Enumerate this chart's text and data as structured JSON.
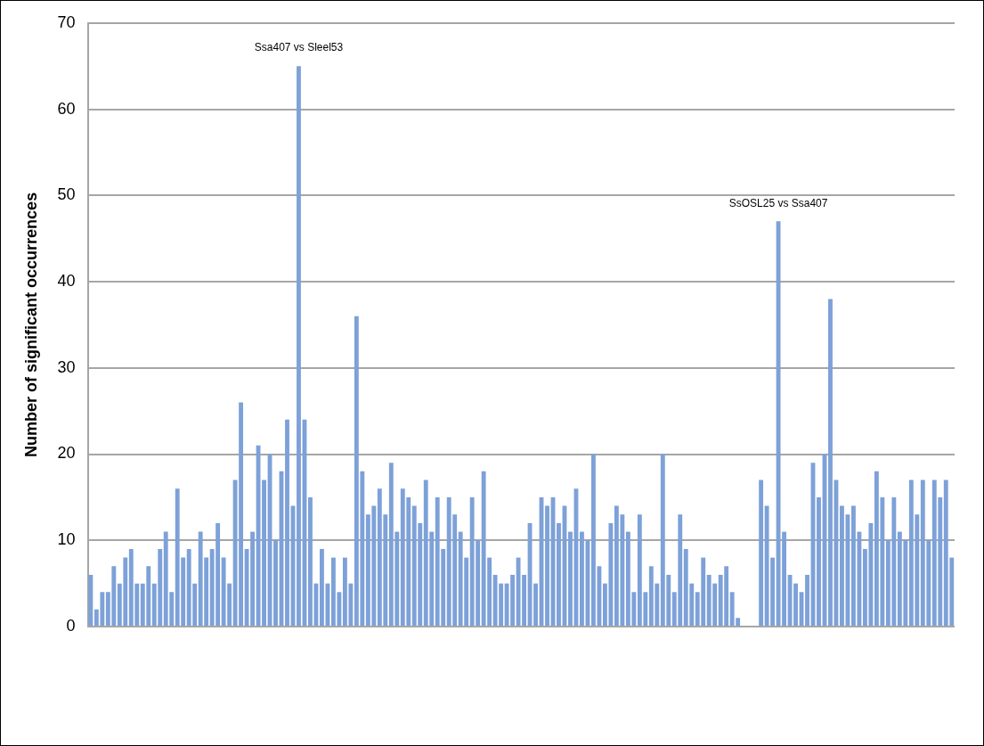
{
  "chart_data": {
    "type": "bar",
    "ylabel": "Number of significant occurrences",
    "annotations": [
      "Ssa407 vs Sleel53",
      "SsOSL25 vs Ssa407"
    ],
    "categories": [
      null,
      null,
      null,
      null,
      null,
      null,
      null,
      null,
      null,
      null,
      null,
      null,
      null,
      null,
      null,
      null,
      null,
      null,
      null,
      null,
      null,
      null,
      null,
      null,
      null,
      null,
      null,
      null,
      null,
      null,
      null,
      null,
      null,
      null,
      null,
      null,
      null,
      null,
      null,
      null,
      null,
      null,
      null,
      null,
      null,
      null,
      null,
      null,
      null,
      null,
      null,
      null,
      null,
      null,
      null,
      null,
      null,
      null,
      null,
      null,
      null,
      null,
      null,
      null,
      null,
      null,
      null,
      null,
      null,
      null,
      null,
      null,
      null,
      null,
      null,
      null,
      null,
      null,
      null,
      null,
      null,
      null,
      null,
      null,
      null,
      null,
      null,
      null,
      null,
      null,
      null,
      null,
      null,
      null,
      null,
      null,
      null,
      null,
      null,
      null,
      null,
      null,
      null,
      null,
      null,
      null,
      null,
      null,
      null,
      null,
      null,
      null,
      null,
      null,
      null,
      null,
      null,
      null,
      null,
      null,
      null,
      null,
      null,
      null,
      null,
      null,
      null,
      null,
      null,
      null,
      null,
      null,
      null,
      null,
      null,
      null,
      null,
      null,
      null,
      null,
      null,
      null,
      null,
      null,
      null,
      null,
      null,
      null,
      null,
      null
    ],
    "values": [
      6,
      2,
      4,
      4,
      7,
      5,
      8,
      9,
      5,
      5,
      7,
      5,
      9,
      11,
      4,
      16,
      8,
      9,
      5,
      11,
      8,
      9,
      12,
      8,
      5,
      17,
      26,
      9,
      11,
      21,
      17,
      20,
      10,
      18,
      24,
      14,
      65,
      24,
      15,
      5,
      9,
      5,
      8,
      4,
      8,
      5,
      36,
      18,
      13,
      14,
      16,
      13,
      19,
      11,
      16,
      15,
      14,
      12,
      17,
      11,
      15,
      9,
      15,
      13,
      11,
      8,
      15,
      10,
      18,
      8,
      6,
      5,
      5,
      6,
      8,
      6,
      12,
      5,
      15,
      14,
      15,
      12,
      14,
      11,
      16,
      11,
      10,
      20,
      7,
      5,
      12,
      14,
      13,
      11,
      4,
      13,
      4,
      7,
      5,
      20,
      6,
      4,
      13,
      9,
      5,
      4,
      8,
      6,
      5,
      6,
      7,
      4,
      1,
      0,
      0,
      0,
      17,
      14,
      8,
      47,
      11,
      6,
      5,
      4,
      6,
      19,
      15,
      20,
      38,
      17,
      14,
      13,
      14,
      11,
      9,
      12,
      18,
      15,
      10,
      15,
      11,
      10,
      17,
      13,
      17,
      10,
      17,
      15,
      17,
      8
    ],
    "color": "#7da1d8",
    "ylim": [
      0,
      70
    ],
    "yticks": [
      0,
      10,
      20,
      30,
      40,
      50,
      60,
      70
    ],
    "grid": "y",
    "legend": false
  }
}
